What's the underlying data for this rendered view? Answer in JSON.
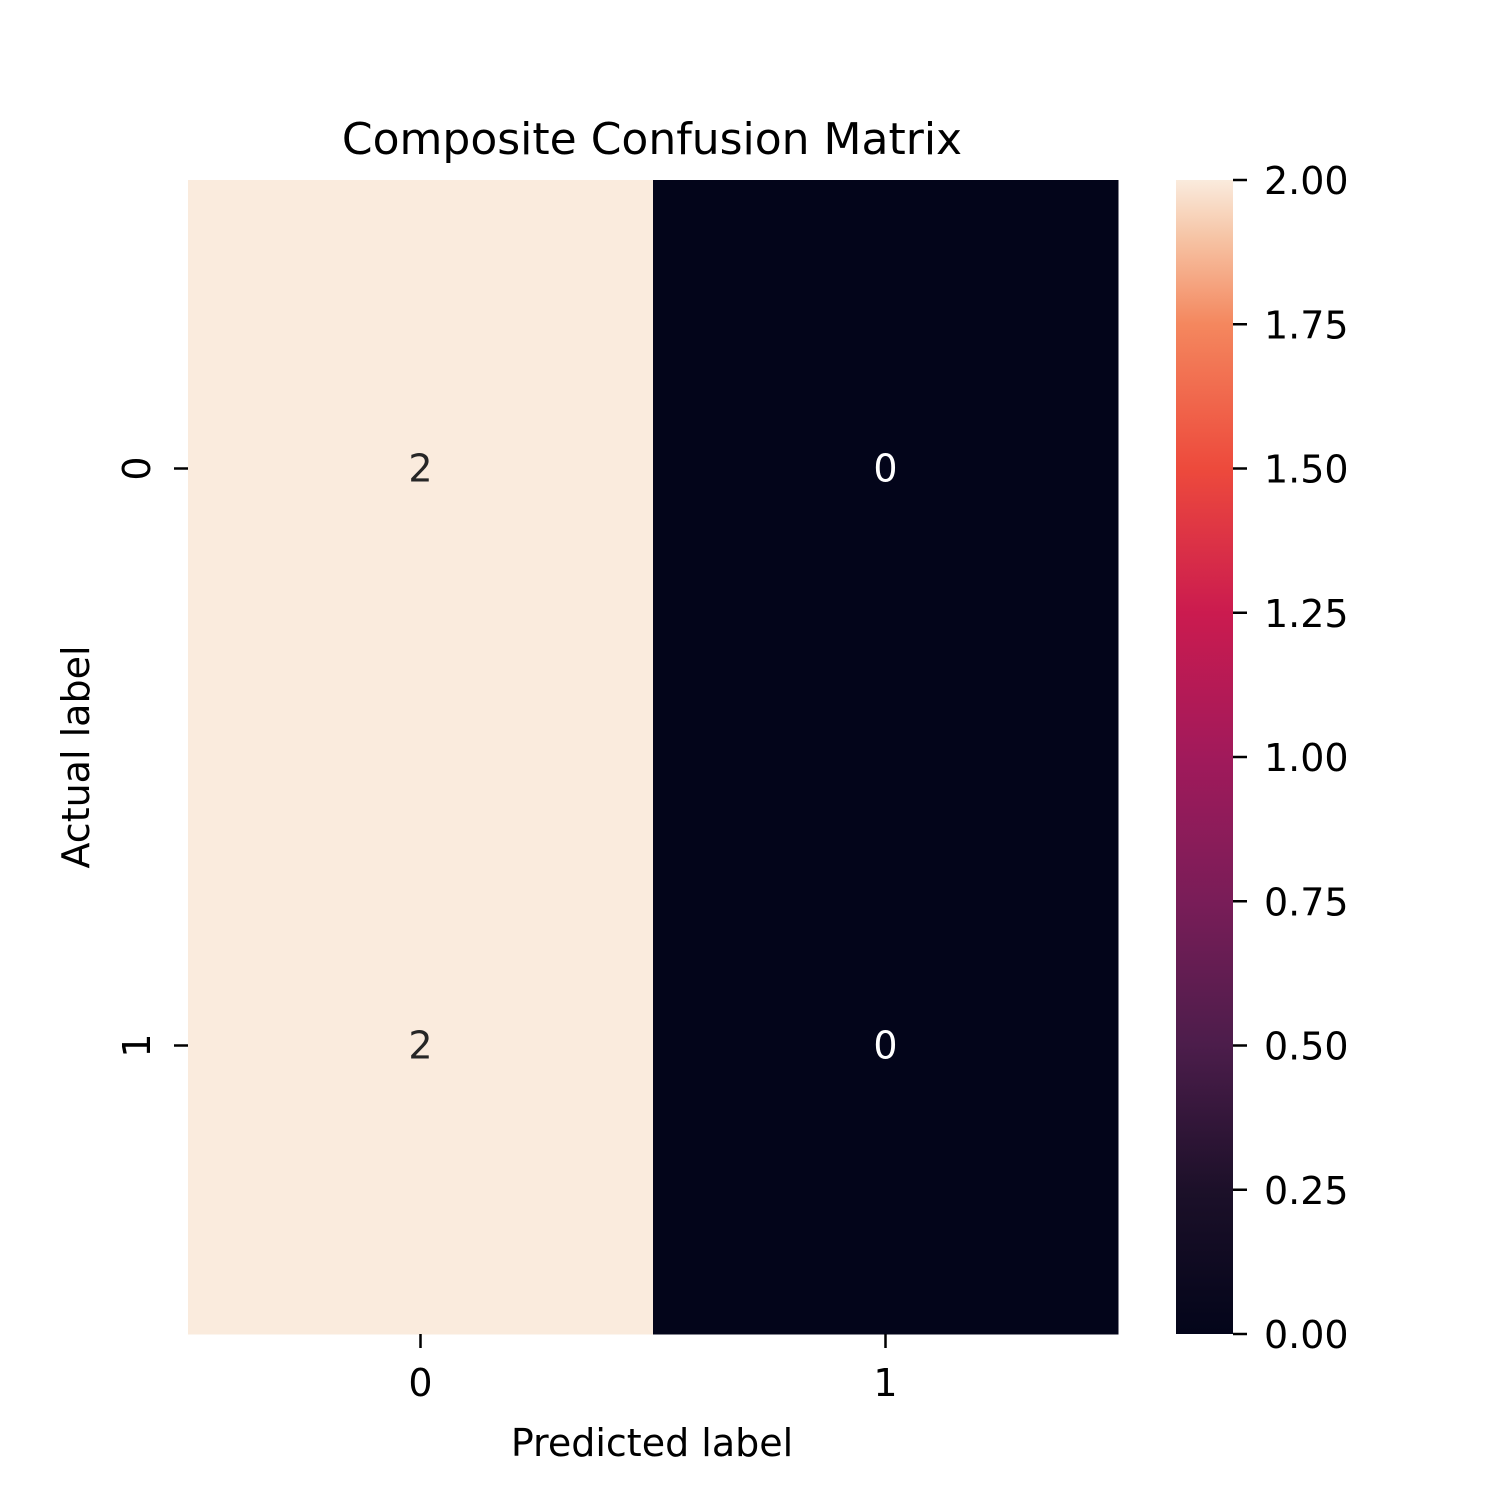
{
  "chart_data": {
    "type": "heatmap",
    "title": "Composite Confusion Matrix",
    "xlabel": "Predicted label",
    "ylabel": "Actual label",
    "x_categories": [
      "0",
      "1"
    ],
    "y_categories": [
      "0",
      "1"
    ],
    "values": [
      [
        2,
        0
      ],
      [
        2,
        0
      ]
    ],
    "cell_labels": [
      [
        "2",
        "0"
      ],
      [
        "2",
        "0"
      ]
    ],
    "colorbar": {
      "range": [
        0,
        2
      ],
      "ticks": [
        0,
        0.25,
        0.5,
        0.75,
        1.0,
        1.25,
        1.5,
        1.75,
        2.0
      ],
      "tick_labels": [
        "0.00",
        "0.25",
        "0.50",
        "0.75",
        "1.00",
        "1.25",
        "1.50",
        "1.75",
        "2.00"
      ]
    },
    "colormap": "rocket",
    "colors": {
      "low": "#03051a",
      "high": "#faebdd",
      "annotation_on_dark": "#ffffff",
      "annotation_on_light": "#262626"
    },
    "grid": false,
    "legend": "colorbar-right"
  }
}
